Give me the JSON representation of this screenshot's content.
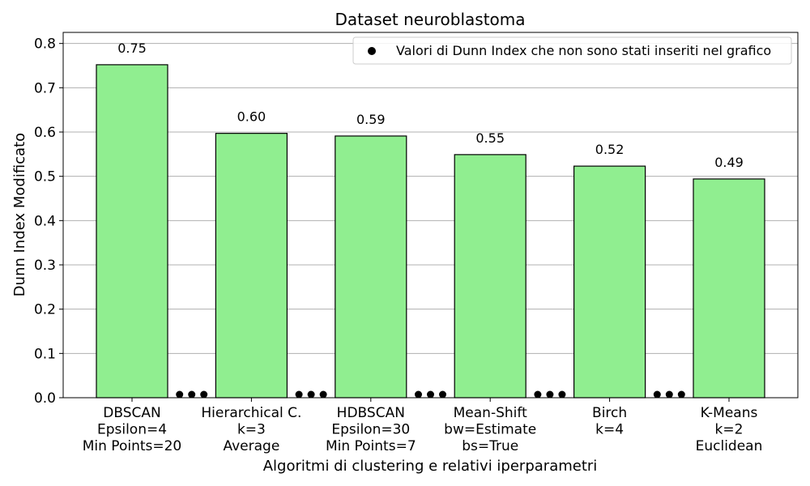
{
  "chart_data": {
    "type": "bar",
    "title": "Dataset neuroblastoma",
    "xlabel": "Algoritmi di clustering e relativi iperparametri",
    "ylabel": "Dunn Index Modificato",
    "ylim": [
      0,
      0.825
    ],
    "yticks": [
      "0.0",
      "0.1",
      "0.2",
      "0.3",
      "0.4",
      "0.5",
      "0.6",
      "0.7",
      "0.8"
    ],
    "grid": "y",
    "bar_color": "#90EE90",
    "bar_edge_color": "#000000",
    "categories": [
      [
        "DBSCAN",
        "Epsilon=4",
        "Min Points=20"
      ],
      [
        "Hierarchical C.",
        "k=3",
        "Average"
      ],
      [
        "HDBSCAN",
        "Epsilon=30",
        "Min Points=7"
      ],
      [
        "Mean-Shift",
        "bw=Estimate",
        "bs=True"
      ],
      [
        "Birch",
        "k=4"
      ],
      [
        "K-Means",
        "k=2",
        "Euclidean"
      ]
    ],
    "values": [
      0.752,
      0.597,
      0.591,
      0.549,
      0.523,
      0.494
    ],
    "value_labels": [
      "0.75",
      "0.60",
      "0.59",
      "0.55",
      "0.52",
      "0.49"
    ],
    "legend": {
      "label": "Valori di Dunn Index che non sono stati inseriti nel grafico",
      "position": "top-right",
      "marker_color": "#000000"
    }
  }
}
